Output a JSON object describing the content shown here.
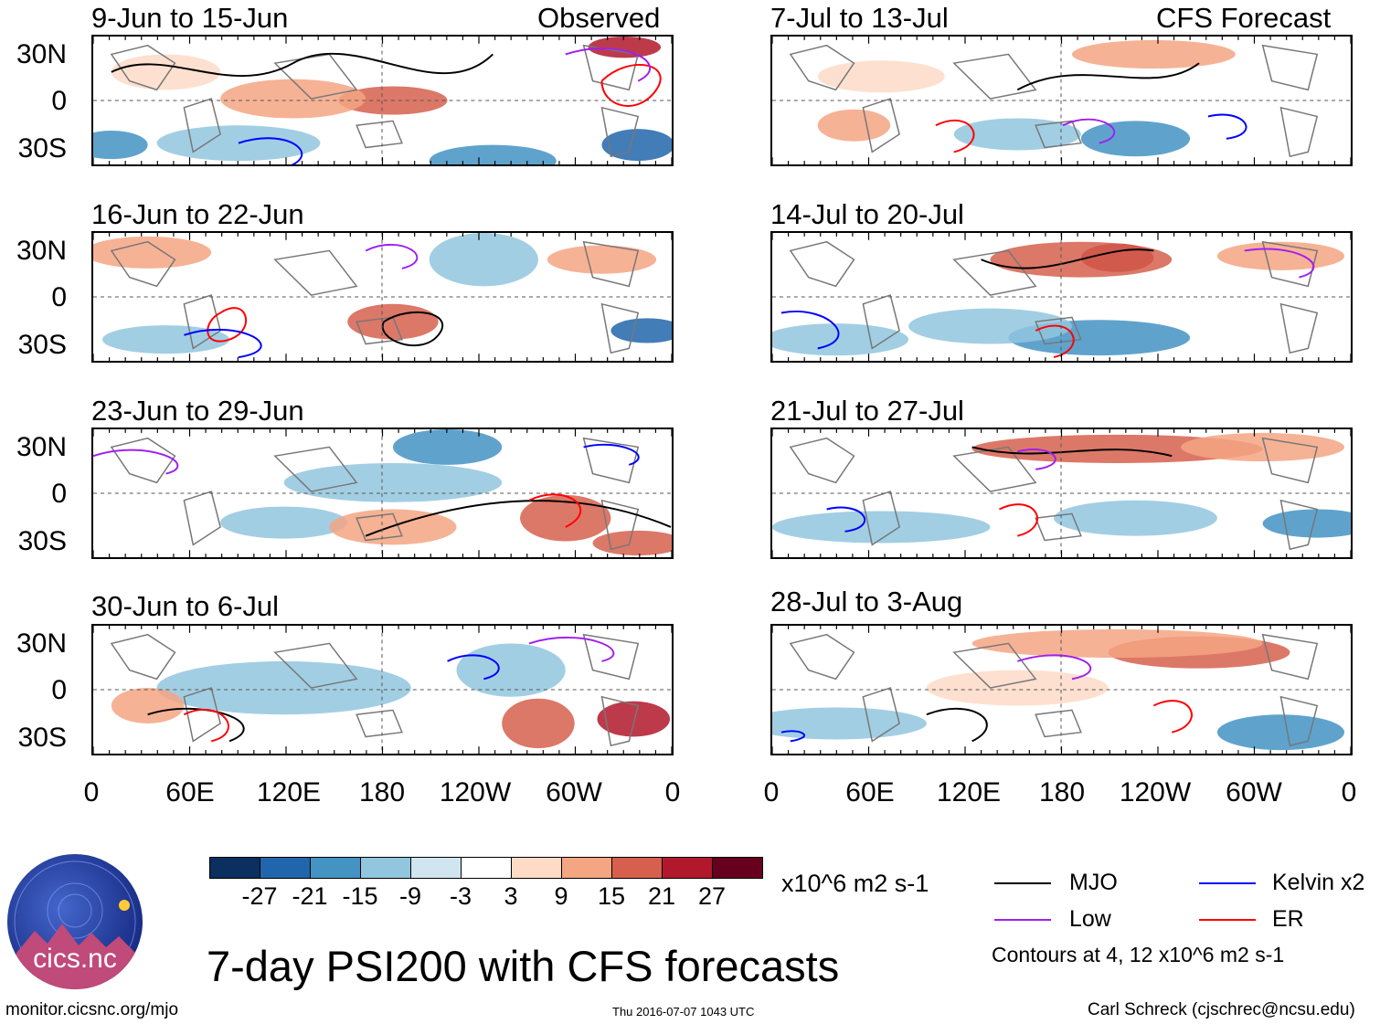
{
  "panels_left": [
    {
      "title": "9-Jun to 15-Jun",
      "tag": "Observed"
    },
    {
      "title": "16-Jun to 22-Jun",
      "tag": ""
    },
    {
      "title": "23-Jun to 29-Jun",
      "tag": ""
    },
    {
      "title": "30-Jun to 6-Jul",
      "tag": ""
    }
  ],
  "panels_right": [
    {
      "title": "7-Jul to 13-Jul",
      "tag": "CFS Forecast"
    },
    {
      "title": "14-Jul to 20-Jul",
      "tag": ""
    },
    {
      "title": "21-Jul to 27-Jul",
      "tag": ""
    },
    {
      "title": "28-Jul to 3-Aug",
      "tag": ""
    }
  ],
  "lat_labels": [
    "30N",
    "0",
    "30S"
  ],
  "lon_labels": [
    "0",
    "60E",
    "120E",
    "180",
    "120W",
    "60W",
    "0"
  ],
  "colorbar": {
    "colors": [
      "#0b2f5e",
      "#2166ac",
      "#4393c3",
      "#92c5de",
      "#d1e5f0",
      "#ffffff",
      "#fddbc7",
      "#f4a582",
      "#d6604d",
      "#b2182b",
      "#67001f"
    ],
    "labels": [
      "-27",
      "-21",
      "-15",
      "-9",
      "-3",
      "3",
      "9",
      "15",
      "21",
      "27"
    ],
    "units": "x10^6 m2 s-1"
  },
  "legend": {
    "items": [
      {
        "label": "MJO",
        "color": "#000000"
      },
      {
        "label": "Kelvin x2",
        "color": "#0000ff"
      },
      {
        "label": "Low",
        "color": "#a020f0"
      },
      {
        "label": "ER",
        "color": "#ff0000"
      }
    ],
    "note": "Contours at 4, 12 x10^6 m2 s-1"
  },
  "main_title": "7-day PSI200 with CFS forecasts",
  "logo_text": "cics.nc",
  "footer": {
    "url": "monitor.cicsnc.org/mjo",
    "timestamp": "Thu 2016-07-07 1043 UTC",
    "credit": "Carl Schreck (cjschrec@ncsu.edu)"
  }
}
